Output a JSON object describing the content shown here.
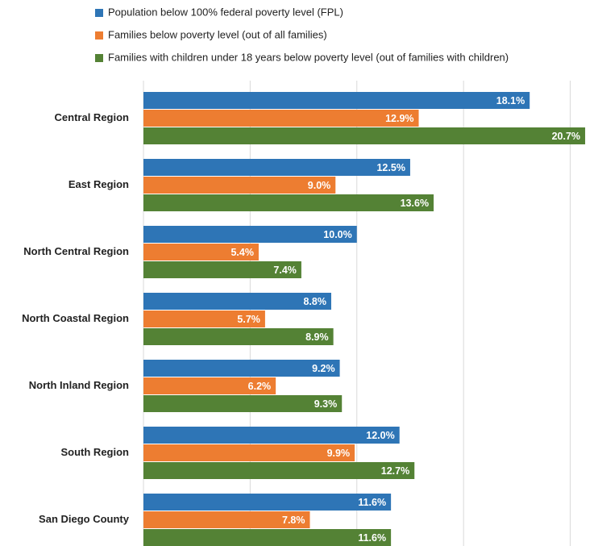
{
  "chart_data": {
    "type": "hbar",
    "categories": [
      "Central Region",
      "East Region",
      "North Central Region",
      "North Coastal Region",
      "North Inland Region",
      "South Region",
      "San Diego County"
    ],
    "series": [
      {
        "name": "Population below 100% federal poverty level (FPL)",
        "color": "#2e75b6",
        "values": [
          18.1,
          12.5,
          10.0,
          8.8,
          9.2,
          12.0,
          11.6
        ],
        "value_labels": [
          "18.1%",
          "12.5%",
          "10.0%",
          "8.8%",
          "9.2%",
          "12.0%",
          "11.6%"
        ]
      },
      {
        "name": "Families below poverty level (out of all families)",
        "color": "#ed7d31",
        "values": [
          12.9,
          9.0,
          5.4,
          5.7,
          6.2,
          9.9,
          7.8
        ],
        "value_labels": [
          "12.9%",
          "9.0%",
          "5.4%",
          "5.7%",
          "6.2%",
          "9.9%",
          "7.8%"
        ]
      },
      {
        "name": "Families with children under 18 years below poverty level (out of families with children)",
        "color": "#548235",
        "values": [
          20.7,
          13.6,
          7.4,
          8.9,
          9.3,
          12.7,
          11.6
        ],
        "value_labels": [
          "20.7%",
          "13.6%",
          "7.4%",
          "8.9%",
          "9.3%",
          "12.7%",
          "11.6%"
        ]
      }
    ],
    "xlim": [
      0,
      21
    ],
    "xticks": [
      0,
      5,
      10,
      15,
      20
    ],
    "grid": true,
    "legend": "top"
  }
}
